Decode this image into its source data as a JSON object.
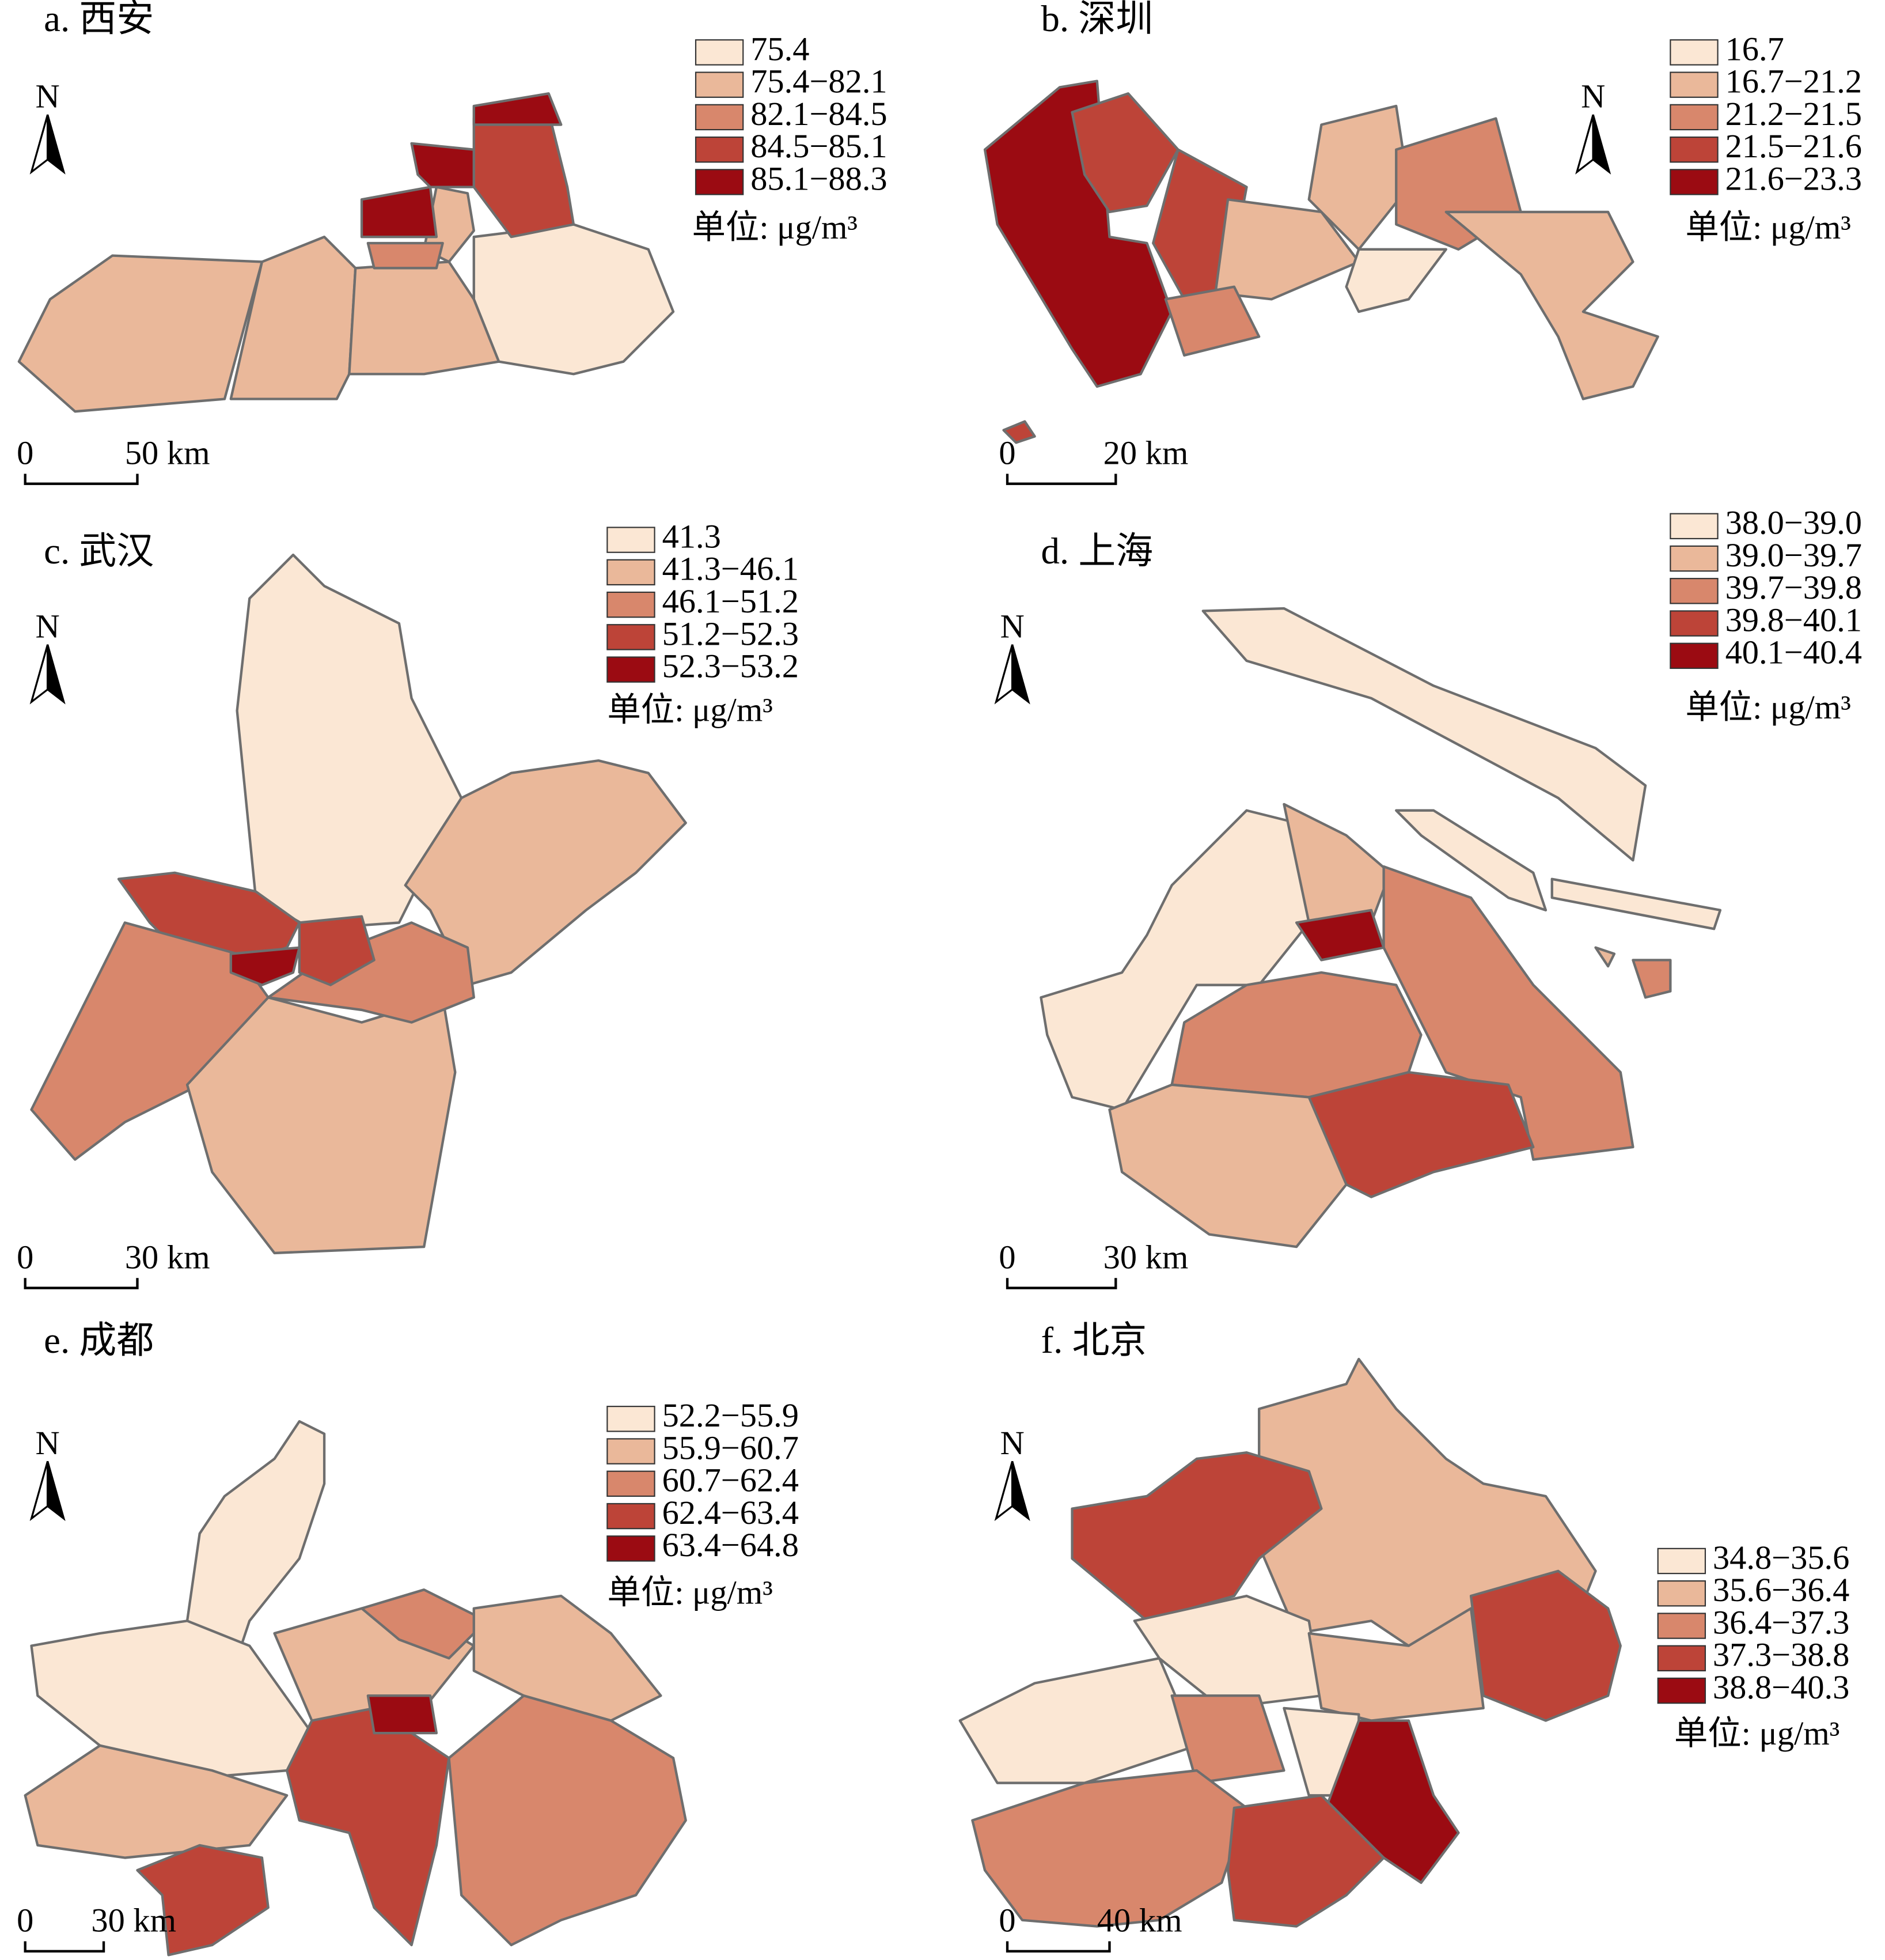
{
  "colors": [
    "#fbe7d4",
    "#eab89a",
    "#d8876c",
    "#bd4438",
    "#9b0b12"
  ],
  "panels": [
    {
      "title": "a. 西安",
      "north": "N",
      "legend": [
        "75.4",
        "75.4−82.1",
        "82.1−84.5",
        "84.5−85.1",
        "85.1−88.3"
      ],
      "unit": "单位: μg/m³",
      "scale": [
        "0",
        "50 km"
      ]
    },
    {
      "title": "b. 深圳",
      "north": "N",
      "legend": [
        "16.7",
        "16.7−21.2",
        "21.2−21.5",
        "21.5−21.6",
        "21.6−23.3"
      ],
      "unit": "单位: μg/m³",
      "scale": [
        "0",
        "20 km"
      ]
    },
    {
      "title": "c. 武汉",
      "north": "N",
      "legend": [
        "41.3",
        "41.3−46.1",
        "46.1−51.2",
        "51.2−52.3",
        "52.3−53.2"
      ],
      "unit": "单位: μg/m³",
      "scale": [
        "0",
        "30 km"
      ]
    },
    {
      "title": "d. 上海",
      "north": "N",
      "legend": [
        "38.0−39.0",
        "39.0−39.7",
        "39.7−39.8",
        "39.8−40.1",
        "40.1−40.4"
      ],
      "unit": "单位: μg/m³",
      "scale": [
        "0",
        "30 km"
      ]
    },
    {
      "title": "e. 成都",
      "north": "N",
      "legend": [
        "52.2−55.9",
        "55.9−60.7",
        "60.7−62.4",
        "62.4−63.4",
        "63.4−64.8"
      ],
      "unit": "单位: μg/m³",
      "scale": [
        "0",
        "30 km"
      ]
    },
    {
      "title": "f. 北京",
      "north": "N",
      "legend": [
        "34.8−35.6",
        "35.6−36.4",
        "36.4−37.3",
        "37.3−38.8",
        "38.8−40.3"
      ],
      "unit": "单位: μg/m³",
      "scale": [
        "0",
        "40 km"
      ]
    }
  ]
}
